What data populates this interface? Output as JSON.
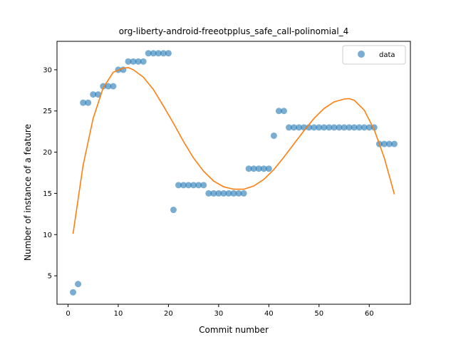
{
  "chart_data": {
    "type": "scatter",
    "title": "org-liberty-android-freeotpplus_safe_call-polinomial_4",
    "xlabel": "Commit number",
    "ylabel": "Number of instance of a feature",
    "xlim": [
      -2.2,
      68.2
    ],
    "ylim": [
      1.55,
      33.45
    ],
    "xticks": [
      0,
      10,
      20,
      30,
      40,
      50,
      60
    ],
    "yticks": [
      5,
      10,
      15,
      20,
      25,
      30
    ],
    "grid": false,
    "legend_position": "top-right",
    "series": [
      {
        "name": "data",
        "kind": "scatter",
        "color": "#1f77b4",
        "x": [
          1,
          2,
          3,
          4,
          5,
          6,
          7,
          8,
          9,
          10,
          11,
          12,
          13,
          14,
          15,
          16,
          17,
          18,
          19,
          20,
          21,
          22,
          23,
          24,
          25,
          26,
          27,
          28,
          29,
          30,
          31,
          32,
          33,
          34,
          35,
          36,
          37,
          38,
          39,
          40,
          41,
          42,
          43,
          44,
          45,
          46,
          47,
          48,
          49,
          50,
          51,
          52,
          53,
          54,
          55,
          56,
          57,
          58,
          59,
          60,
          61,
          62,
          63,
          64,
          65
        ],
        "y": [
          3,
          4,
          26,
          26,
          27,
          27,
          28,
          28,
          28,
          30,
          30,
          31,
          31,
          31,
          31,
          32,
          32,
          32,
          32,
          32,
          13,
          16,
          16,
          16,
          16,
          16,
          16,
          15,
          15,
          15,
          15,
          15,
          15,
          15,
          15,
          18,
          18,
          18,
          18,
          18,
          22,
          25,
          25,
          23,
          23,
          23,
          23,
          23,
          23,
          23,
          23,
          23,
          23,
          23,
          23,
          23,
          23,
          23,
          23,
          23,
          23,
          21,
          21,
          21,
          21
        ]
      },
      {
        "kind": "line",
        "color": "#ff7f0e",
        "x": [
          1,
          3,
          5,
          7,
          9,
          11,
          12,
          13,
          15,
          17,
          19,
          21,
          23,
          25,
          27,
          29,
          31,
          33,
          35,
          37,
          39,
          41,
          43,
          45,
          47,
          49,
          51,
          53,
          55,
          56,
          57,
          59,
          61,
          63,
          65
        ],
        "y": [
          10.1,
          18.4,
          24.1,
          27.8,
          29.7,
          30.2,
          30.25,
          30.0,
          29.1,
          27.6,
          25.6,
          23.5,
          21.3,
          19.3,
          17.7,
          16.5,
          15.8,
          15.5,
          15.5,
          15.9,
          16.7,
          17.9,
          19.4,
          21.0,
          22.6,
          24.1,
          25.3,
          26.1,
          26.45,
          26.5,
          26.3,
          25.1,
          22.7,
          19.3,
          14.9
        ]
      }
    ]
  }
}
